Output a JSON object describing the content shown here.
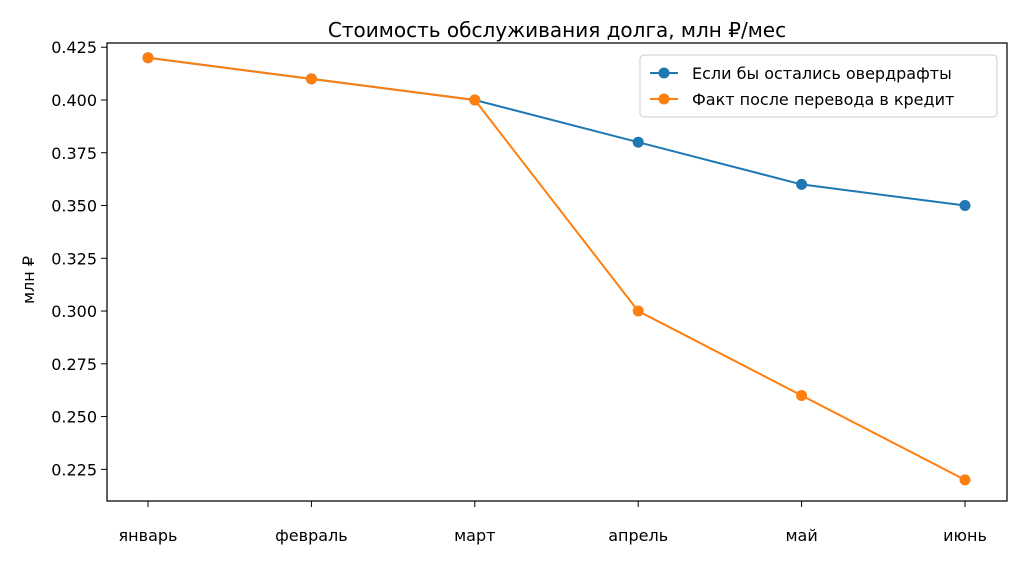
{
  "chart_data": {
    "type": "line",
    "title": "Стоимость обслуживания долга, млн ₽/мес",
    "xlabel": "",
    "ylabel": "млн ₽",
    "categories": [
      "январь",
      "февраль",
      "март",
      "апрель",
      "май",
      "июнь"
    ],
    "ylim": [
      0.21,
      0.427
    ],
    "yticks": [
      "0.225",
      "0.250",
      "0.275",
      "0.300",
      "0.325",
      "0.350",
      "0.375",
      "0.400",
      "0.425"
    ],
    "grid": false,
    "legend_position": "top-right",
    "series": [
      {
        "name": "Если бы остались овердрафты",
        "color": "#1f77b4",
        "values": [
          0.42,
          0.41,
          0.4,
          0.38,
          0.36,
          0.35
        ]
      },
      {
        "name": "Факт после перевода в кредит",
        "color": "#ff7f0e",
        "values": [
          0.42,
          0.41,
          0.4,
          0.3,
          0.26,
          0.22
        ]
      }
    ]
  }
}
